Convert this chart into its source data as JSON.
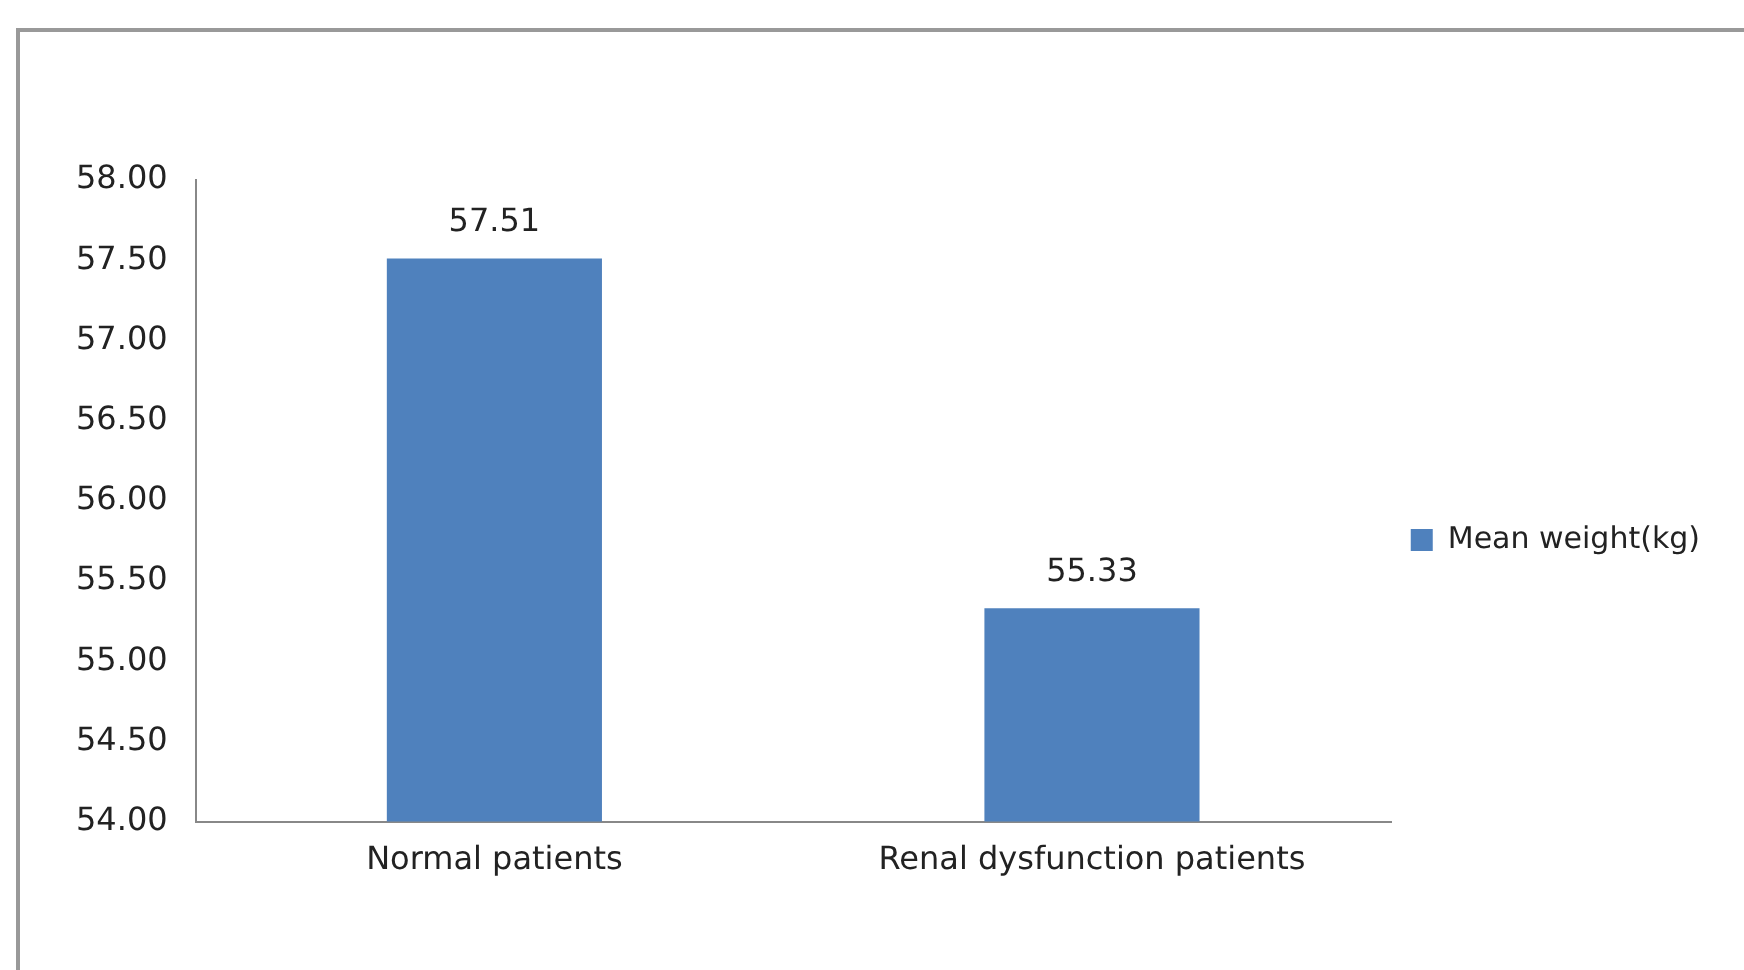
{
  "chart_data": {
    "type": "bar",
    "categories": [
      "Normal patients",
      "Renal dysfunction patients"
    ],
    "series": [
      {
        "name": "Mean weight(kg)",
        "color": "#4f81bd",
        "values": [
          57.51,
          55.33
        ]
      }
    ],
    "ylim": [
      54,
      58
    ],
    "yticks": [
      {
        "value": 54,
        "label": "54.00"
      },
      {
        "value": 54.5,
        "label": "54.50"
      },
      {
        "value": 55,
        "label": "55.00"
      },
      {
        "value": 55.5,
        "label": "55.50"
      },
      {
        "value": 56,
        "label": "56.00"
      },
      {
        "value": 56.5,
        "label": "56.50"
      },
      {
        "value": 57,
        "label": "57.00"
      },
      {
        "value": 57.5,
        "label": "57.50"
      },
      {
        "value": 58,
        "label": "58.00"
      }
    ],
    "grid": false,
    "legend": "right",
    "data_labels": true
  }
}
